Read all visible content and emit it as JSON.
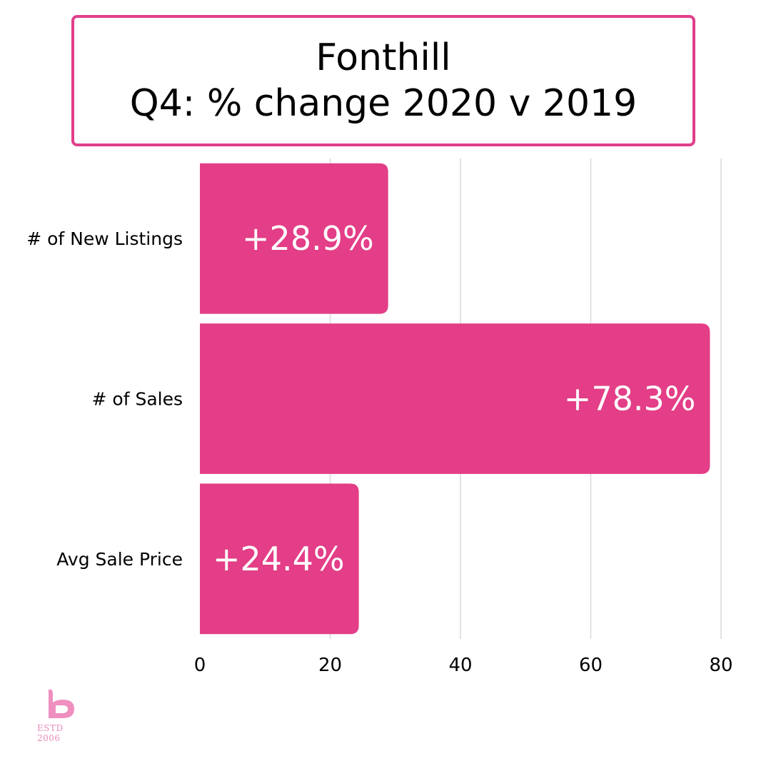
{
  "title": {
    "line1": "Fonthill",
    "line2": "Q4: % change 2020 v 2019"
  },
  "colors": {
    "bar": "#e33e87",
    "border": "#e03e8a",
    "grid": "#d9d9d9",
    "logo": "#ee8fc0"
  },
  "logo": {
    "icon": "b-logo-icon",
    "text": "ESTD 2006"
  },
  "chart_data": {
    "type": "bar",
    "orientation": "horizontal",
    "categories": [
      "# of New Listings",
      "# of Sales",
      "Avg Sale Price"
    ],
    "values": [
      28.9,
      78.3,
      24.4
    ],
    "labels": [
      "+28.9%",
      "+78.3%",
      "+24.4%"
    ],
    "xticks": [
      "0",
      "20",
      "40",
      "60",
      "80"
    ],
    "xlim": [
      0,
      80
    ],
    "grid": true,
    "legend": "none"
  }
}
